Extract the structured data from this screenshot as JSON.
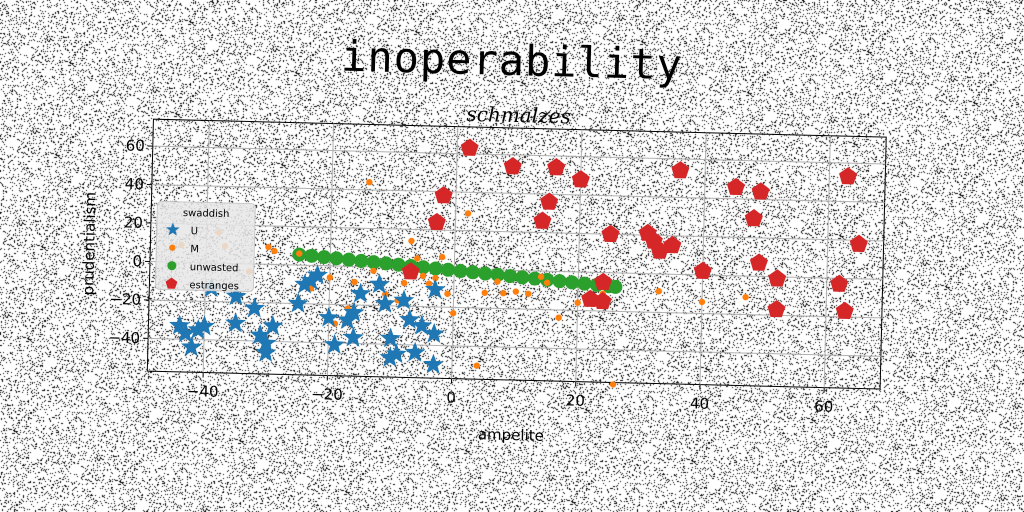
{
  "suptitle": "inoperability",
  "chart_data": {
    "type": "scatter",
    "title": "schmalzes",
    "xlabel": "ampelite",
    "ylabel": "prudentialism",
    "xlim": [
      -49,
      69
    ],
    "ylim": [
      -57,
      74
    ],
    "xticks": [
      -40,
      -20,
      0,
      20,
      40,
      60
    ],
    "yticks": [
      -40,
      -20,
      0,
      20,
      40,
      60
    ],
    "grid": true,
    "legend": {
      "title": "swaddish",
      "placement": "center-left"
    },
    "series": [
      {
        "name": "U",
        "marker": "star",
        "color": "#1f77b4",
        "points": [
          [
            -44,
            -33
          ],
          [
            -43,
            -37
          ],
          [
            -42,
            -44
          ],
          [
            -41,
            -35
          ],
          [
            -40,
            -33
          ],
          [
            -39,
            -13
          ],
          [
            -35,
            -17
          ],
          [
            -35,
            -31
          ],
          [
            -32,
            -23
          ],
          [
            -31,
            -37
          ],
          [
            -30,
            -41
          ],
          [
            -30,
            -46
          ],
          [
            -29,
            -32
          ],
          [
            -25,
            -20
          ],
          [
            -24,
            -10
          ],
          [
            -23,
            -8
          ],
          [
            -22,
            -5
          ],
          [
            -20,
            -27
          ],
          [
            -19,
            -41
          ],
          [
            -17,
            -28
          ],
          [
            -16,
            -37
          ],
          [
            -16,
            -24
          ],
          [
            -15,
            -14
          ],
          [
            -12,
            -9
          ],
          [
            -11,
            -19
          ],
          [
            -10,
            -37
          ],
          [
            -10,
            -47
          ],
          [
            -9,
            -45
          ],
          [
            -8,
            -17
          ],
          [
            -7,
            -27
          ],
          [
            -6,
            -44
          ],
          [
            -5,
            -30
          ],
          [
            -3,
            -34
          ],
          [
            -3,
            -11
          ],
          [
            -3,
            -50
          ]
        ]
      },
      {
        "name": "M",
        "marker": "circle",
        "color": "#ff7f0e",
        "points": [
          [
            -44,
            9
          ],
          [
            -38,
            16
          ],
          [
            -37,
            9
          ],
          [
            -33,
            -4
          ],
          [
            -30,
            9
          ],
          [
            -29,
            7
          ],
          [
            -25,
            6
          ],
          [
            -23,
            -12
          ],
          [
            -22,
            -4
          ],
          [
            -20,
            -6
          ],
          [
            -19,
            -30
          ],
          [
            -17,
            -22
          ],
          [
            -16,
            -8
          ],
          [
            -14,
            44
          ],
          [
            -13,
            -2
          ],
          [
            -11,
            -14
          ],
          [
            -9,
            -17
          ],
          [
            -8,
            -8
          ],
          [
            -7,
            14
          ],
          [
            -6,
            5
          ],
          [
            -5,
            -4
          ],
          [
            -4,
            -8
          ],
          [
            -3,
            -5
          ],
          [
            -2,
            6
          ],
          [
            -1,
            -13
          ],
          [
            0,
            -23
          ],
          [
            2,
            29
          ],
          [
            4,
            -50
          ],
          [
            5,
            -12
          ],
          [
            7,
            -6
          ],
          [
            8,
            -12
          ],
          [
            10,
            -11
          ],
          [
            12,
            -12
          ],
          [
            14,
            -3
          ],
          [
            15,
            -6
          ],
          [
            17,
            -24
          ],
          [
            20,
            -16
          ],
          [
            24,
            -11
          ],
          [
            26,
            -58
          ],
          [
            33,
            -9
          ],
          [
            40,
            3
          ],
          [
            40,
            -14
          ],
          [
            47,
            -11
          ]
        ]
      },
      {
        "name": "unwasted",
        "marker": "circle",
        "color": "#2ca02c",
        "points": [
          [
            -25,
            5.5
          ],
          [
            -23,
            5.0
          ],
          [
            -21,
            4.5
          ],
          [
            -19,
            4.0
          ],
          [
            -17,
            3.5
          ],
          [
            -15,
            3.0
          ],
          [
            -13,
            2.5
          ],
          [
            -11,
            2.0
          ],
          [
            -9,
            1.5
          ],
          [
            -7,
            1.0
          ],
          [
            -5,
            0.5
          ],
          [
            -3,
            0.0
          ],
          [
            -1,
            -0.5
          ],
          [
            1,
            -1.0
          ],
          [
            3,
            -1.5
          ],
          [
            5,
            -2.0
          ],
          [
            7,
            -2.5
          ],
          [
            9,
            -3.0
          ],
          [
            11,
            -3.5
          ],
          [
            13,
            -4.0
          ],
          [
            15,
            -4.5
          ],
          [
            17,
            -5.0
          ],
          [
            19,
            -5.5
          ],
          [
            21,
            -6.0
          ],
          [
            23,
            -6.5
          ],
          [
            25,
            -7.0
          ],
          [
            26,
            -7.3
          ]
        ]
      },
      {
        "name": "estranges",
        "marker": "pentagon",
        "color": "#d62728",
        "points": [
          [
            -7,
            -2
          ],
          [
            -3,
            24
          ],
          [
            -2,
            38
          ],
          [
            2,
            63
          ],
          [
            9,
            54
          ],
          [
            14,
            26
          ],
          [
            15,
            36
          ],
          [
            16,
            54
          ],
          [
            20,
            48
          ],
          [
            22,
            -14
          ],
          [
            24,
            -15
          ],
          [
            24,
            -5
          ],
          [
            25,
            20
          ],
          [
            31,
            21
          ],
          [
            32,
            17
          ],
          [
            33,
            12
          ],
          [
            35,
            15
          ],
          [
            36,
            54
          ],
          [
            40,
            2
          ],
          [
            45,
            46
          ],
          [
            48,
            30
          ],
          [
            49,
            7
          ],
          [
            49,
            44
          ],
          [
            52,
            -1
          ],
          [
            52,
            -17
          ],
          [
            62,
            -3
          ],
          [
            63,
            -17
          ],
          [
            63,
            53
          ],
          [
            65,
            18
          ]
        ]
      }
    ]
  }
}
